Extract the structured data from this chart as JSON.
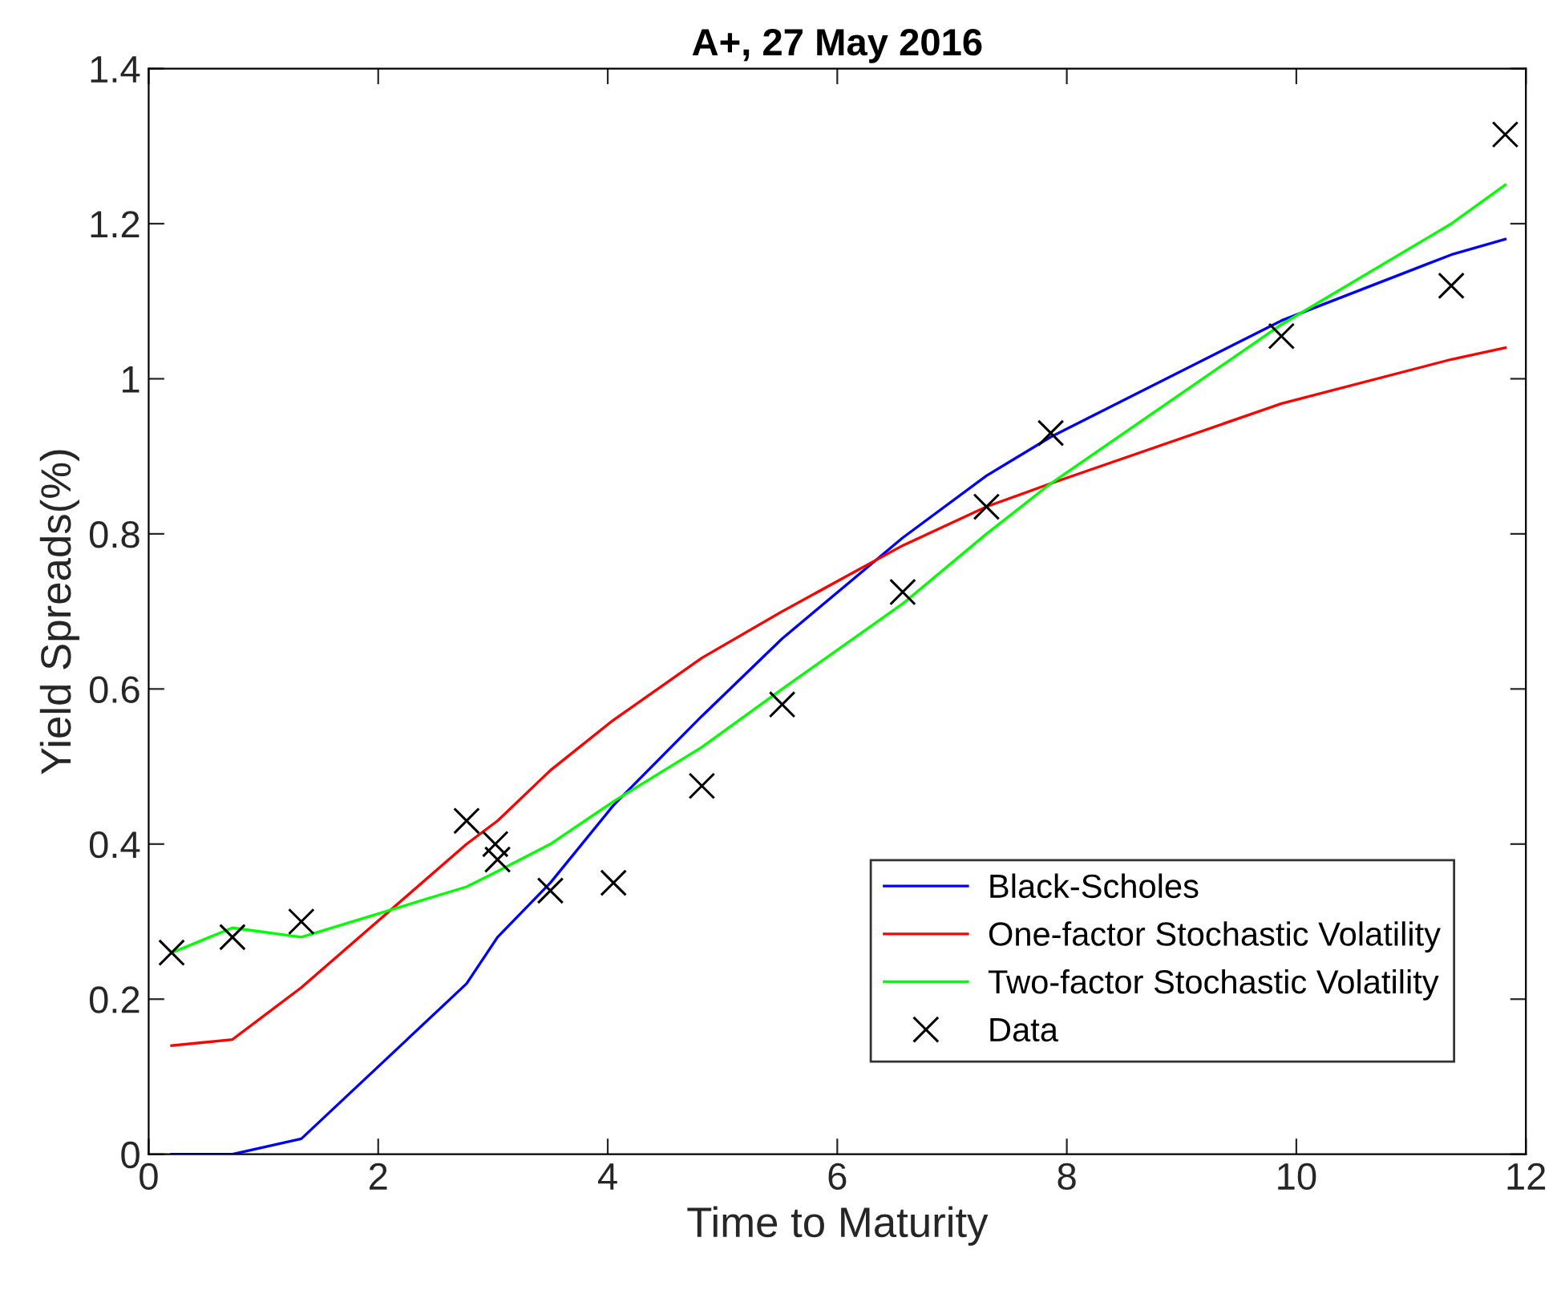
{
  "chart_data": {
    "type": "line",
    "title": "A+, 27 May 2016",
    "xlabel": "Time to Maturity",
    "ylabel": "Yield Spreads(%)",
    "x": [
      0.2,
      0.73,
      1.33,
      2.77,
      3.04,
      3.5,
      4.05,
      4.82,
      5.52,
      6.57,
      7.3,
      7.86,
      9.87,
      11.35,
      11.82
    ],
    "series": [
      {
        "name": "Black-Scholes",
        "color": "#0000ff",
        "values": [
          0,
          0,
          0.02,
          0.22,
          0.28,
          0.35,
          0.45,
          0.565,
          0.665,
          0.795,
          0.875,
          0.925,
          1.075,
          1.16,
          1.18
        ]
      },
      {
        "name": "One-factor Stochastic Volatility",
        "color": "#ff0000",
        "values": [
          0.14,
          0.148,
          0.215,
          0.4,
          0.43,
          0.495,
          0.56,
          0.64,
          0.7,
          0.785,
          0.835,
          0.865,
          0.968,
          1.025,
          1.04
        ]
      },
      {
        "name": "Two-factor Stochastic Volatility",
        "color": "#00ff00",
        "values": [
          0.26,
          0.292,
          0.28,
          0.345,
          0.365,
          0.4,
          0.455,
          0.525,
          0.6,
          0.71,
          0.8,
          0.865,
          1.07,
          1.2,
          1.25
        ]
      },
      {
        "name": "Data",
        "type": "scatter",
        "marker": "cross",
        "color": "#000000",
        "x": [
          0.2,
          0.73,
          1.33,
          2.77,
          3.02,
          3.04,
          3.5,
          4.05,
          4.82,
          5.52,
          6.57,
          7.3,
          7.86,
          9.87,
          11.35,
          11.82
        ],
        "values": [
          0.26,
          0.28,
          0.3,
          0.43,
          0.4,
          0.38,
          0.34,
          0.35,
          0.475,
          0.58,
          0.725,
          0.835,
          0.93,
          1.055,
          1.12,
          1.315
        ]
      }
    ],
    "xlim": [
      0,
      12
    ],
    "xticks": [
      0,
      2,
      4,
      6,
      8,
      10,
      12
    ],
    "ylim": [
      0,
      1.4
    ],
    "yticks": [
      0,
      0.2,
      0.4,
      0.6,
      0.8,
      1,
      1.2,
      1.4
    ],
    "grid": false,
    "legend": "bottom right"
  }
}
